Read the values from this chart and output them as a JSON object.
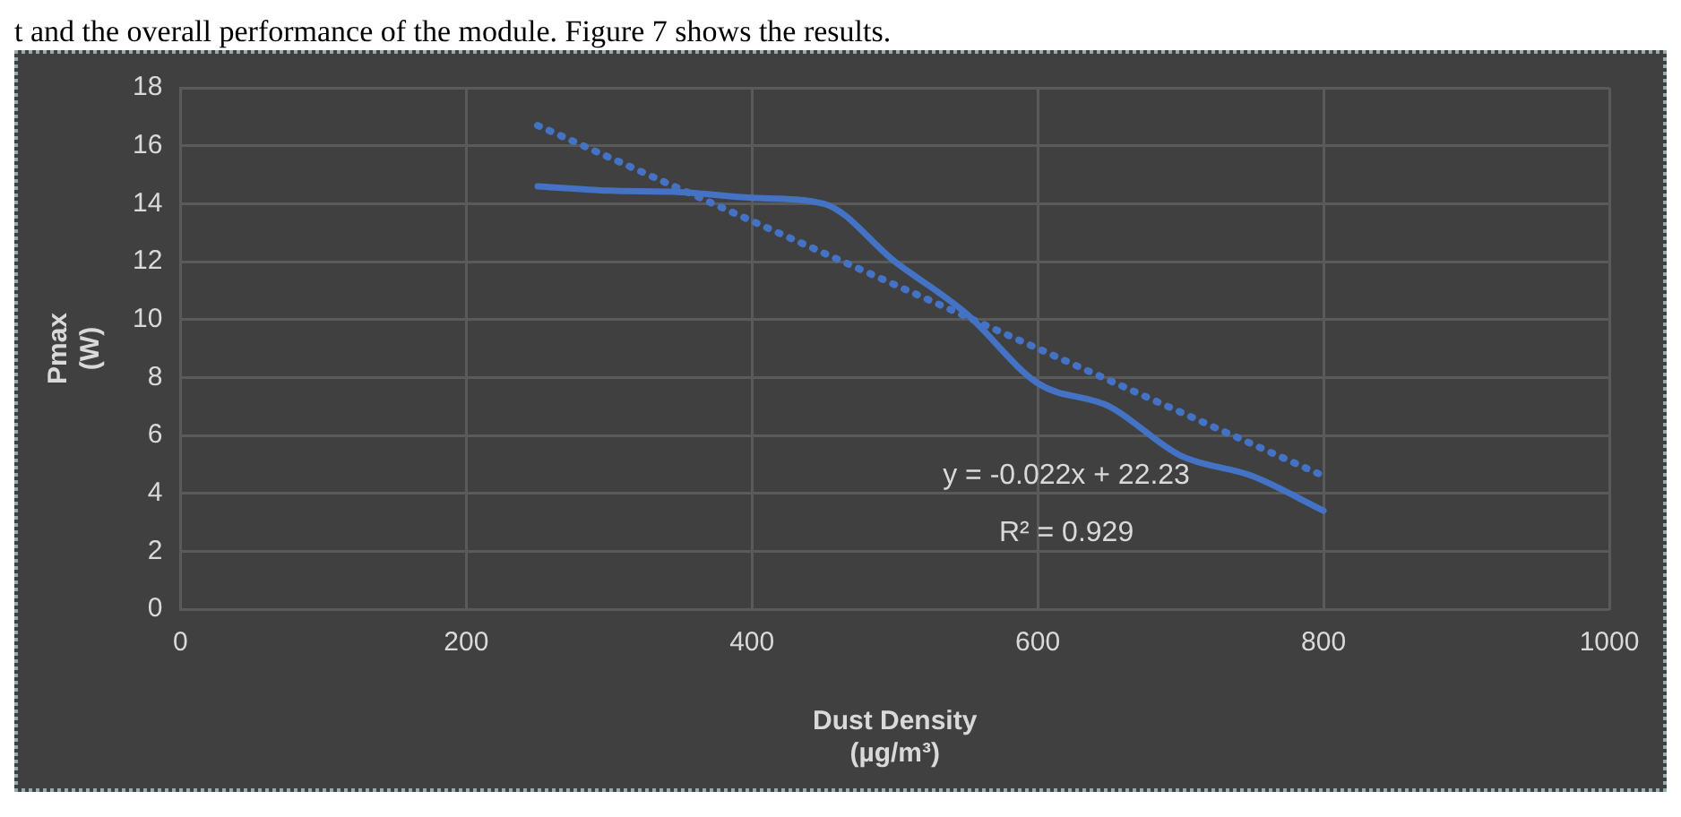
{
  "chart_data": {
    "type": "line",
    "xlabel": "Dust Density\n(µg/m³)",
    "ylabel": "Pmax\n(W)",
    "xlim": [
      0,
      1000
    ],
    "xticks": [
      0,
      200,
      400,
      600,
      800,
      1000
    ],
    "ylim": [
      0,
      18
    ],
    "yticks": [
      0,
      2,
      4,
      6,
      8,
      10,
      12,
      14,
      16,
      18
    ],
    "grid": true,
    "legend": false,
    "marker": "none",
    "series": [
      {
        "color": "#4472c4",
        "line_style": "solid",
        "x": [
          250,
          300,
          350,
          400,
          450,
          500,
          550,
          600,
          650,
          700,
          750,
          800
        ],
        "values": [
          14.6,
          14.45,
          14.4,
          14.2,
          14.0,
          12.0,
          10.2,
          7.8,
          7.0,
          5.3,
          4.6,
          3.4
        ]
      },
      {
        "color": "#4472c4",
        "line_style": "dotted",
        "x": [
          250,
          800
        ],
        "values": [
          16.7,
          4.6
        ]
      }
    ],
    "annotations": [
      "t and the overall performance of the module. Figure 7 shows the results.",
      "y = -0.022x + 22.23",
      "R² = 0.929"
    ]
  }
}
